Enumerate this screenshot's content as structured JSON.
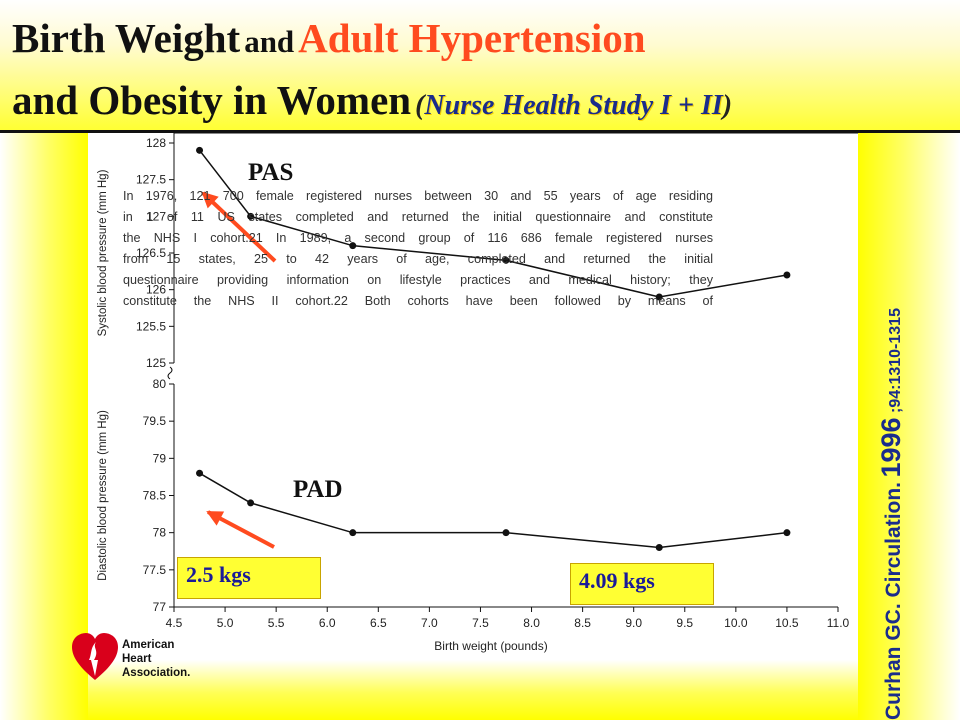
{
  "title": {
    "line1_a": "Birth Weight",
    "line1_b": "and",
    "line1_c": "Adult Hypertension",
    "line2_a": "and Obesity in Women",
    "line2_open": "(",
    "line2_b": "Nurse Health Study  I + II",
    "line2_close": ")"
  },
  "citation": {
    "main": "Curhan GC. Circulation.",
    "year": "1996",
    "rest": ";94:1310-1315"
  },
  "excerpt": [
    "In 1976, 121 700 female registered nurses between 30 and 55 years of age residing",
    "in 1 of 11 US states completed and returned the initial questionnaire and constitute",
    "the NHS I cohort.21 In 1989, a second group of 116 686 female registered nurses",
    "from 15 states, 25 to 42 years of age, completed and returned the initial",
    "questionnaire providing information on lifestyle practices and medical history; they",
    "constitute the NHS II cohort.22 Both cohorts have been followed by means of"
  ],
  "boxes": {
    "left": "2.5 kgs",
    "right": "4.09 kgs"
  },
  "logo": {
    "line1": "American",
    "line2": "Heart",
    "line3": "Association."
  },
  "colors": {
    "header_yellow": "#ffff33",
    "title_red": "#ff4b1f",
    "nurse_blue": "#1a2c8c",
    "arrow": "#ff4b1f"
  },
  "chart_data": [
    {
      "type": "line",
      "title": "PAS",
      "ylabel": "Systolic blood pressure (mm Hg)",
      "xlabel": "Birth weight (pounds)",
      "ylim": [
        125,
        128
      ],
      "yticks": [
        "125",
        "125.5",
        "126",
        "126.5",
        "127",
        "127.5",
        "128"
      ],
      "x": [
        4.75,
        5.25,
        6.25,
        7.75,
        9.25,
        10.5
      ],
      "values": [
        127.9,
        127.0,
        126.6,
        126.4,
        125.9,
        126.2
      ]
    },
    {
      "type": "line",
      "title": "PAD",
      "ylabel": "Diastolic blood pressure (mm Hg)",
      "xlabel": "Birth weight (pounds)",
      "ylim": [
        77,
        80
      ],
      "yticks": [
        "77",
        "77.5",
        "78",
        "78.5",
        "79",
        "79.5",
        "80"
      ],
      "x": [
        4.75,
        5.25,
        6.25,
        7.75,
        9.25,
        10.5
      ],
      "values": [
        78.8,
        78.4,
        78.0,
        78.0,
        77.8,
        78.0
      ]
    }
  ],
  "x_axis": {
    "xlim": [
      4.5,
      11.0
    ],
    "ticks": [
      "4.5",
      "5.0",
      "5.5",
      "6.0",
      "6.5",
      "7.0",
      "7.5",
      "8.0",
      "8.5",
      "9.0",
      "9.5",
      "10.0",
      "10.5",
      "11.0"
    ]
  }
}
